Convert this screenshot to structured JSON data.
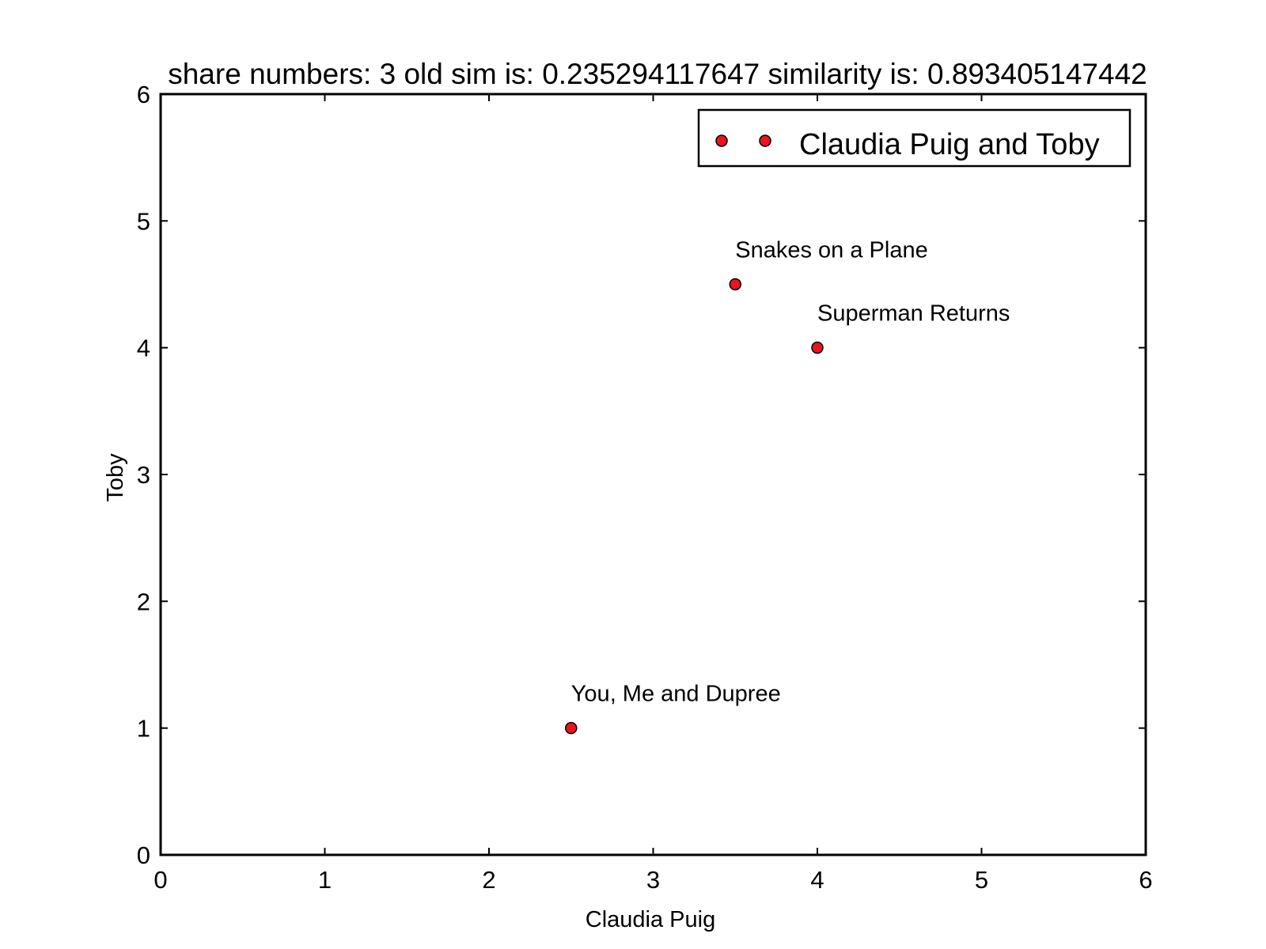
{
  "chart_data": {
    "type": "scatter",
    "title": "share numbers: 3 old sim is: 0.235294117647 similarity is: 0.893405147442",
    "xlabel": "Claudia Puig",
    "ylabel": "Toby",
    "xlim": [
      0,
      6
    ],
    "ylim": [
      0,
      6
    ],
    "xticks": [
      "0",
      "1",
      "2",
      "3",
      "4",
      "5",
      "6"
    ],
    "yticks": [
      "0",
      "1",
      "2",
      "3",
      "4",
      "5",
      "6"
    ],
    "grid": false,
    "legend_position": "top-right",
    "series": [
      {
        "name": "Claudia Puig and Toby",
        "color": "#e8141e",
        "points": [
          {
            "x": 2.5,
            "y": 1.0,
            "label": "You, Me and Dupree"
          },
          {
            "x": 3.5,
            "y": 4.5,
            "label": "Snakes on a Plane"
          },
          {
            "x": 4.0,
            "y": 4.0,
            "label": "Superman Returns"
          }
        ]
      }
    ]
  }
}
